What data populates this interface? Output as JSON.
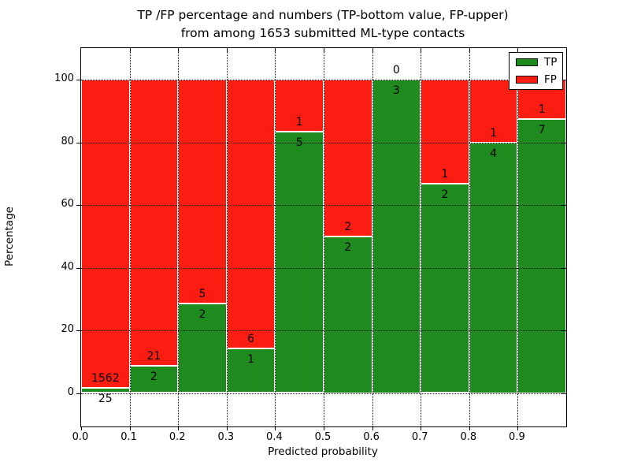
{
  "title": {
    "line1": "TP /FP percentage and numbers (TP-bottom value, FP-upper)",
    "line2": "from among 1653 submitted ML-type contacts"
  },
  "axes": {
    "xlabel": "Predicted probability",
    "ylabel": "Percentage",
    "x_tick_labels": [
      "0.0",
      "0.1",
      "0.2",
      "0.3",
      "0.4",
      "0.5",
      "0.6",
      "0.7",
      "0.8",
      "0.9"
    ],
    "x_tick_values": [
      0.0,
      0.1,
      0.2,
      0.3,
      0.4,
      0.5,
      0.6,
      0.7,
      0.8,
      0.9
    ],
    "y_tick_labels": [
      "0",
      "20",
      "40",
      "60",
      "80",
      "100"
    ],
    "y_tick_values": [
      0,
      20,
      40,
      60,
      80,
      100
    ]
  },
  "legend": {
    "position": "upper right",
    "items": [
      {
        "label": "TP",
        "color": "#1f8b1f"
      },
      {
        "label": "FP",
        "color": "#fb1d12"
      }
    ]
  },
  "colors": {
    "tp_green": "#1f8b1f",
    "fp_red": "#fb1d12",
    "grid": "#111111",
    "background": "#ffffff"
  },
  "chart_data": {
    "type": "bar",
    "stacked": true,
    "normalized_to_percent": true,
    "title": "TP /FP percentage and numbers (TP-bottom value, FP-upper) from among 1653 submitted ML-type contacts",
    "xlabel": "Predicted probability",
    "ylabel": "Percentage",
    "grid": true,
    "legend_position": "upper right",
    "xlim": [
      0.0,
      1.0
    ],
    "ylim": [
      -10.7,
      110.1
    ],
    "bin_edges": [
      0.0,
      0.1,
      0.2,
      0.3,
      0.4,
      0.5,
      0.6,
      0.7,
      0.8,
      0.9,
      1.0
    ],
    "categories": [
      "0.0-0.1",
      "0.1-0.2",
      "0.2-0.3",
      "0.3-0.4",
      "0.4-0.5",
      "0.5-0.6",
      "0.6-0.7",
      "0.7-0.8",
      "0.8-0.9",
      "0.9-1.0"
    ],
    "series": [
      {
        "name": "TP",
        "counts": [
          25,
          2,
          2,
          1,
          5,
          2,
          3,
          2,
          4,
          7
        ]
      },
      {
        "name": "FP",
        "counts": [
          1562,
          21,
          5,
          6,
          1,
          2,
          0,
          1,
          1,
          1
        ]
      }
    ],
    "tp_percent": [
      1.58,
      8.7,
      28.57,
      14.29,
      83.33,
      50.0,
      100.0,
      66.67,
      80.0,
      87.5
    ],
    "total_contacts": 1653
  }
}
